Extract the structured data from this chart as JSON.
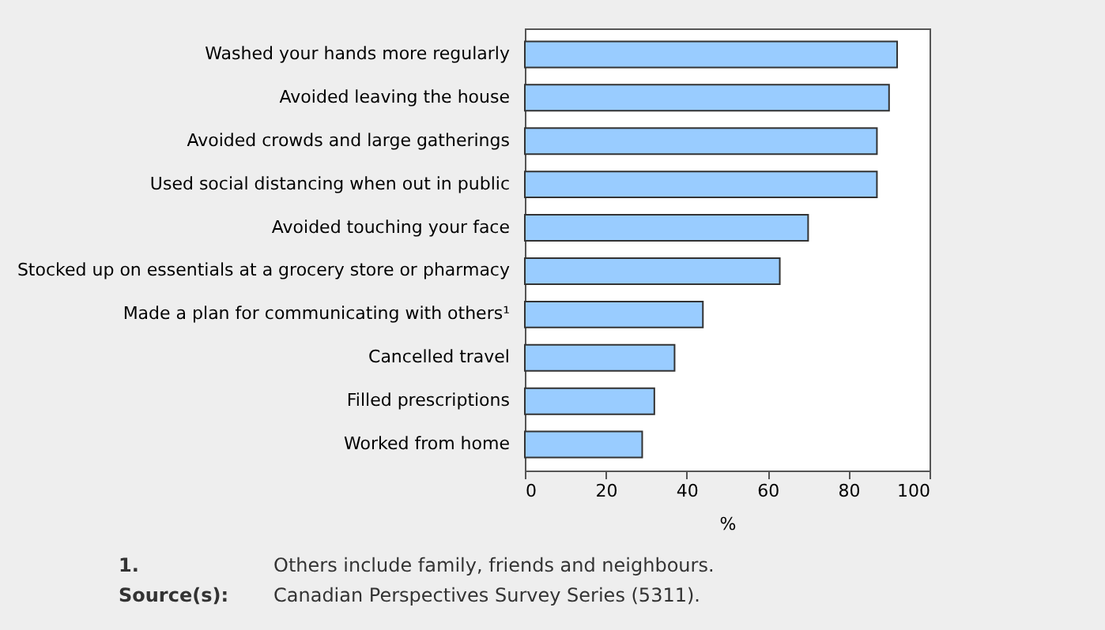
{
  "chart_data": {
    "type": "bar",
    "orientation": "horizontal",
    "categories": [
      "Washed your hands more regularly",
      "Avoided leaving the house",
      "Avoided crowds and large gatherings",
      "Used social distancing when out in public",
      "Avoided touching your face",
      "Stocked up on essentials at a grocery store or pharmacy",
      "Made a plan for communicating with others¹",
      "Cancelled travel",
      "Filled prescriptions",
      "Worked from home"
    ],
    "values": [
      92,
      90,
      87,
      87,
      70,
      63,
      44,
      37,
      32,
      29
    ],
    "color": "#99ccff",
    "xlabel": "%",
    "xlim": [
      0,
      100
    ],
    "xticks": [
      0,
      20,
      40,
      60,
      80,
      100
    ],
    "grid": false,
    "annotations": [
      "1.\tOthers include family, friends and neighbours.",
      "Source(s):\tCanadian Perspectives Survey Series (5311)."
    ]
  }
}
